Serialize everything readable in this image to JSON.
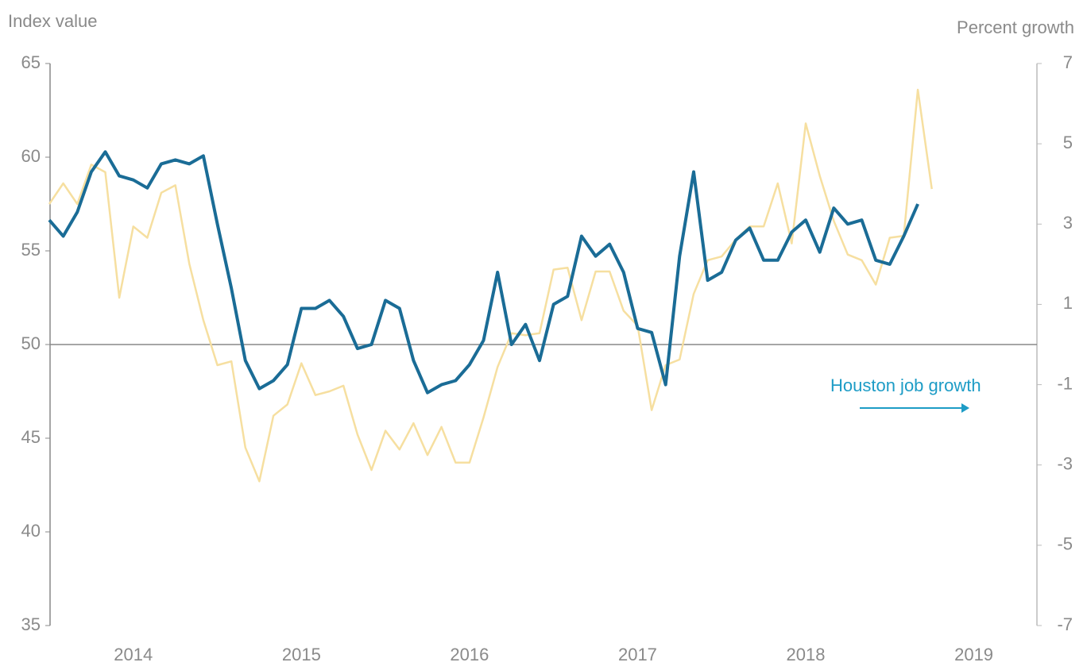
{
  "chart_data": {
    "type": "line",
    "y_label": "Index value",
    "y2_label": "Percent growth",
    "annotation": "Houston job growth",
    "categories": [
      null,
      null,
      null,
      null,
      null,
      null,
      "2014",
      null,
      null,
      null,
      null,
      null,
      null,
      null,
      null,
      null,
      null,
      null,
      "2015",
      null,
      null,
      null,
      null,
      null,
      null,
      null,
      null,
      null,
      null,
      null,
      "2016",
      null,
      null,
      null,
      null,
      null,
      null,
      null,
      null,
      null,
      null,
      null,
      "2017",
      null,
      null,
      null,
      null,
      null,
      null,
      null,
      null,
      null,
      null,
      null,
      "2018",
      null,
      null,
      null,
      null,
      null,
      null,
      null,
      null,
      null,
      null,
      null,
      "2019",
      null,
      null,
      null,
      null
    ],
    "series": [
      {
        "color": "#f6dfa0",
        "values": [
          57.5,
          58.6,
          57.5,
          59.6,
          59.2,
          52.5,
          56.3,
          55.7,
          58.1,
          58.5,
          54.3,
          51.3,
          48.9,
          49.1,
          44.5,
          42.7,
          46.2,
          46.8,
          49.0,
          47.3,
          47.5,
          47.8,
          45.2,
          43.3,
          45.4,
          44.4,
          45.8,
          44.1,
          45.6,
          43.7,
          43.7,
          46.1,
          48.8,
          50.6,
          50.5,
          50.6,
          54.0,
          54.1,
          51.3,
          53.9,
          53.9,
          51.8,
          51.0,
          46.5,
          48.9,
          49.2,
          52.7,
          54.5,
          54.7,
          55.6,
          56.3,
          56.3,
          58.6,
          55.4,
          61.8,
          59.0,
          56.6,
          54.8,
          54.5,
          53.2,
          55.7,
          55.8,
          63.6,
          58.3,
          null,
          null,
          null,
          null,
          null,
          null,
          null
        ]
      },
      {
        "name": "Houston job growth",
        "color": "#1a6c96",
        "axis": "y2",
        "values": [
          3.1,
          2.7,
          3.3,
          4.3,
          4.8,
          4.2,
          4.1,
          3.9,
          4.5,
          4.6,
          4.5,
          4.7,
          3.0,
          1.4,
          -0.4,
          -1.1,
          -0.9,
          -0.5,
          0.9,
          0.9,
          1.1,
          0.7,
          -0.1,
          0.0,
          1.1,
          0.9,
          -0.4,
          -1.2,
          -1.0,
          -0.9,
          -0.5,
          0.1,
          1.8,
          0.0,
          0.5,
          -0.4,
          1.0,
          1.2,
          2.7,
          2.2,
          2.5,
          1.8,
          0.4,
          0.3,
          -1.0,
          2.2,
          4.3,
          1.6,
          1.8,
          2.6,
          2.9,
          2.1,
          2.1,
          2.8,
          3.1,
          2.3,
          3.4,
          3.0,
          3.1,
          2.1,
          2.0,
          2.7,
          3.5,
          null,
          null,
          null,
          null,
          null,
          null,
          null,
          null
        ]
      }
    ],
    "hline": 50,
    "ylim": [
      35,
      65
    ],
    "yticks": [
      35,
      40,
      45,
      50,
      55,
      60,
      65
    ],
    "y2lim": [
      -7,
      7
    ],
    "y2ticks": [
      -7,
      -5,
      -3,
      -1,
      1,
      3,
      5,
      7
    ]
  }
}
